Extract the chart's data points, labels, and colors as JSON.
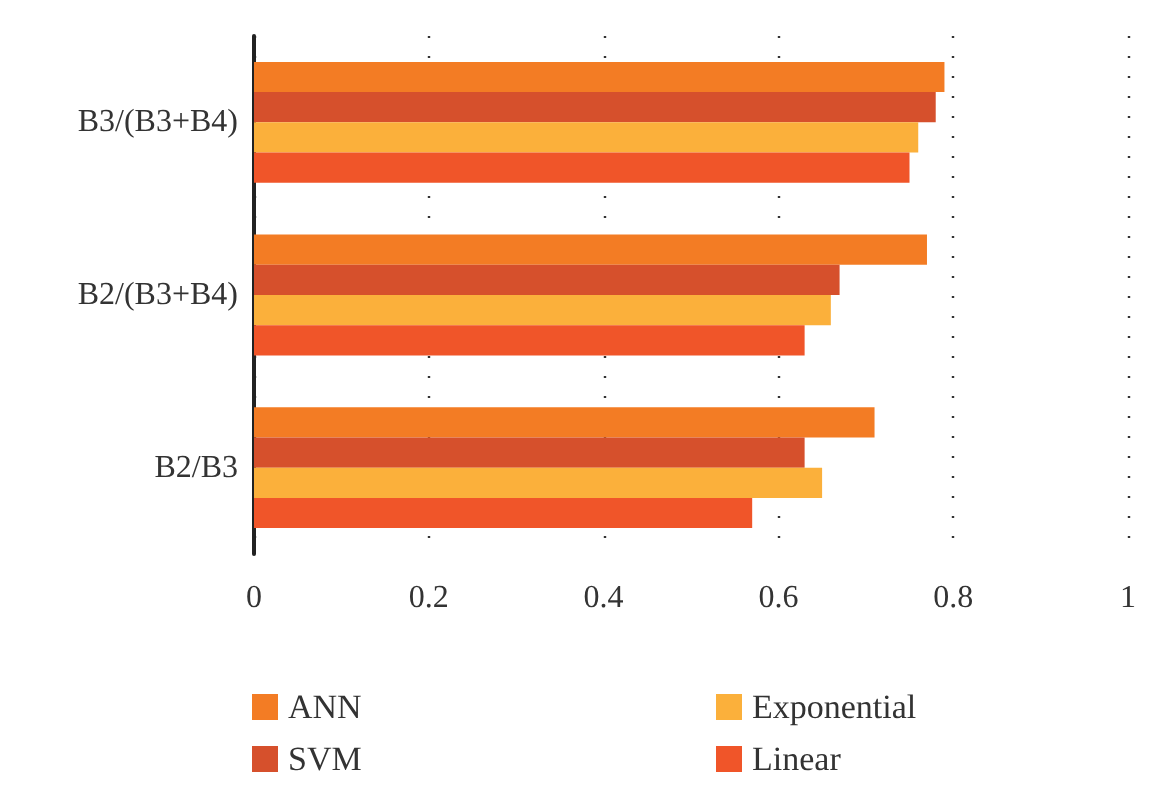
{
  "chart_data": {
    "type": "bar",
    "orientation": "horizontal",
    "categories": [
      "B3/(B3+B4)",
      "B2/(B3+B4)",
      "B2/B3"
    ],
    "series": [
      {
        "name": "ANN",
        "color": "#f37c24",
        "values": [
          0.79,
          0.77,
          0.71
        ]
      },
      {
        "name": "SVM",
        "color": "#d6502c",
        "values": [
          0.78,
          0.67,
          0.63
        ]
      },
      {
        "name": "Exponential",
        "color": "#fbb03b",
        "values": [
          0.76,
          0.66,
          0.65
        ]
      },
      {
        "name": "Linear",
        "color": "#f05529",
        "values": [
          0.75,
          0.63,
          0.57
        ]
      }
    ],
    "xlim": [
      0,
      1
    ],
    "xticks": [
      0,
      0.2,
      0.4,
      0.6,
      0.8,
      1
    ],
    "grid": "x",
    "legend": "bottom"
  }
}
